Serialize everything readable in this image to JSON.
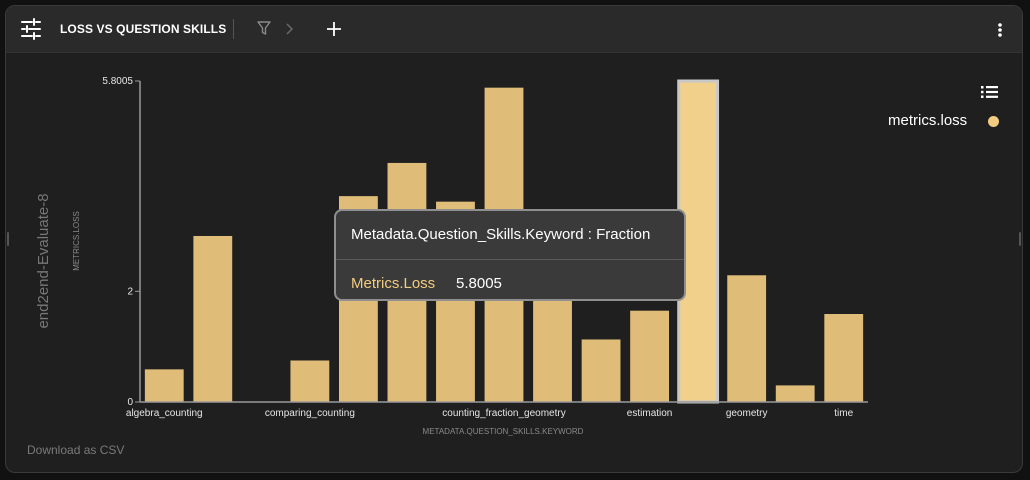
{
  "header": {
    "title": "LOSS VS QUESTION SKILLS",
    "icons": [
      "sliders-icon",
      "filter-icon",
      "chevron-right-icon",
      "plus-icon",
      "more-vertical-icon"
    ]
  },
  "tooltip": {
    "heading": "Metadata.Question_Skills.Keyword : Fraction",
    "series": "Metrics.Loss",
    "value": "5.8005"
  },
  "legend": {
    "label": "metrics.loss",
    "color": "#f2cc80"
  },
  "download_label": "Download as CSV",
  "colors": {
    "bar": "#dfbd78",
    "bar_highlight": "#f0d08a",
    "background": "#1f1f1f"
  },
  "chart_data": {
    "type": "bar",
    "series_title": "end2end-Evaluate-8",
    "xlabel": "METADATA.QUESTION_SKILLS.KEYWORD",
    "ylabel": "METRICS.LOSS",
    "ylim": [
      0,
      5.8005
    ],
    "y_ticks": [
      {
        "value": 0,
        "label": "0"
      },
      {
        "value": 2,
        "label": "2"
      },
      {
        "value": 5.8005,
        "label": "5.8005"
      }
    ],
    "categories": [
      "algebra_counting",
      "",
      "",
      "comparing_counting",
      "",
      "",
      "",
      "counting_fraction_geometry",
      "",
      "",
      "estimation",
      "",
      "geometry",
      "",
      "time"
    ],
    "values": [
      0.59,
      3.0,
      0,
      0.75,
      3.72,
      4.32,
      3.62,
      5.68,
      2.17,
      1.13,
      1.65,
      5.8005,
      2.29,
      0.3,
      1.59
    ],
    "highlight_index": 11,
    "grid": false,
    "legend_position": "top-right"
  }
}
